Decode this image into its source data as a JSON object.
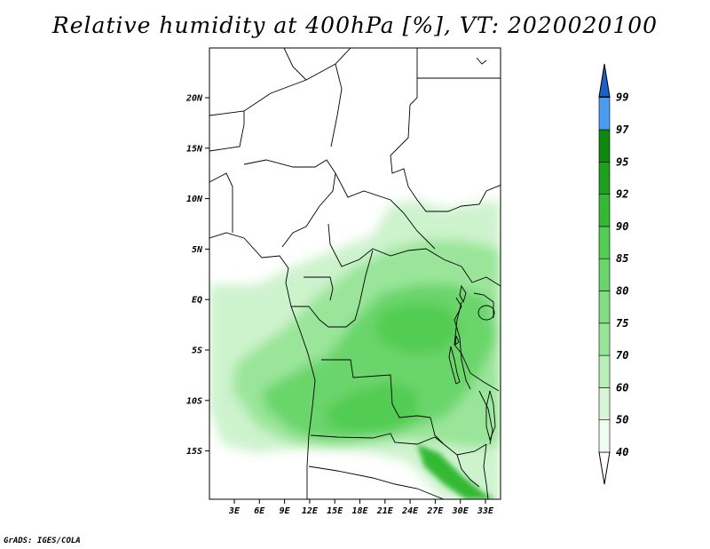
{
  "title": "Relative humidity at 400hPa [%], VT: 2020020100",
  "credit": "GrADS: IGES/COLA",
  "map": {
    "lat_ticks": [
      "20N",
      "15N",
      "10N",
      "5N",
      "EQ",
      "5S",
      "10S",
      "15S"
    ],
    "lon_ticks": [
      "3E",
      "6E",
      "9E",
      "12E",
      "15E",
      "18E",
      "21E",
      "24E",
      "27E",
      "30E",
      "33E"
    ]
  },
  "colorbar": {
    "levels": [
      "40",
      "50",
      "60",
      "70",
      "75",
      "80",
      "85",
      "90",
      "92",
      "95",
      "97",
      "99"
    ],
    "colors": [
      "#f0fcf0",
      "#d7f6d7",
      "#b8eeb8",
      "#9ae59a",
      "#82dd82",
      "#6ad56a",
      "#52cc52",
      "#34b934",
      "#1e9f1e",
      "#0f880f",
      "#4a9cf0",
      "#2a78df",
      "#1f5fc7"
    ],
    "under_color": "#ffffff"
  }
}
